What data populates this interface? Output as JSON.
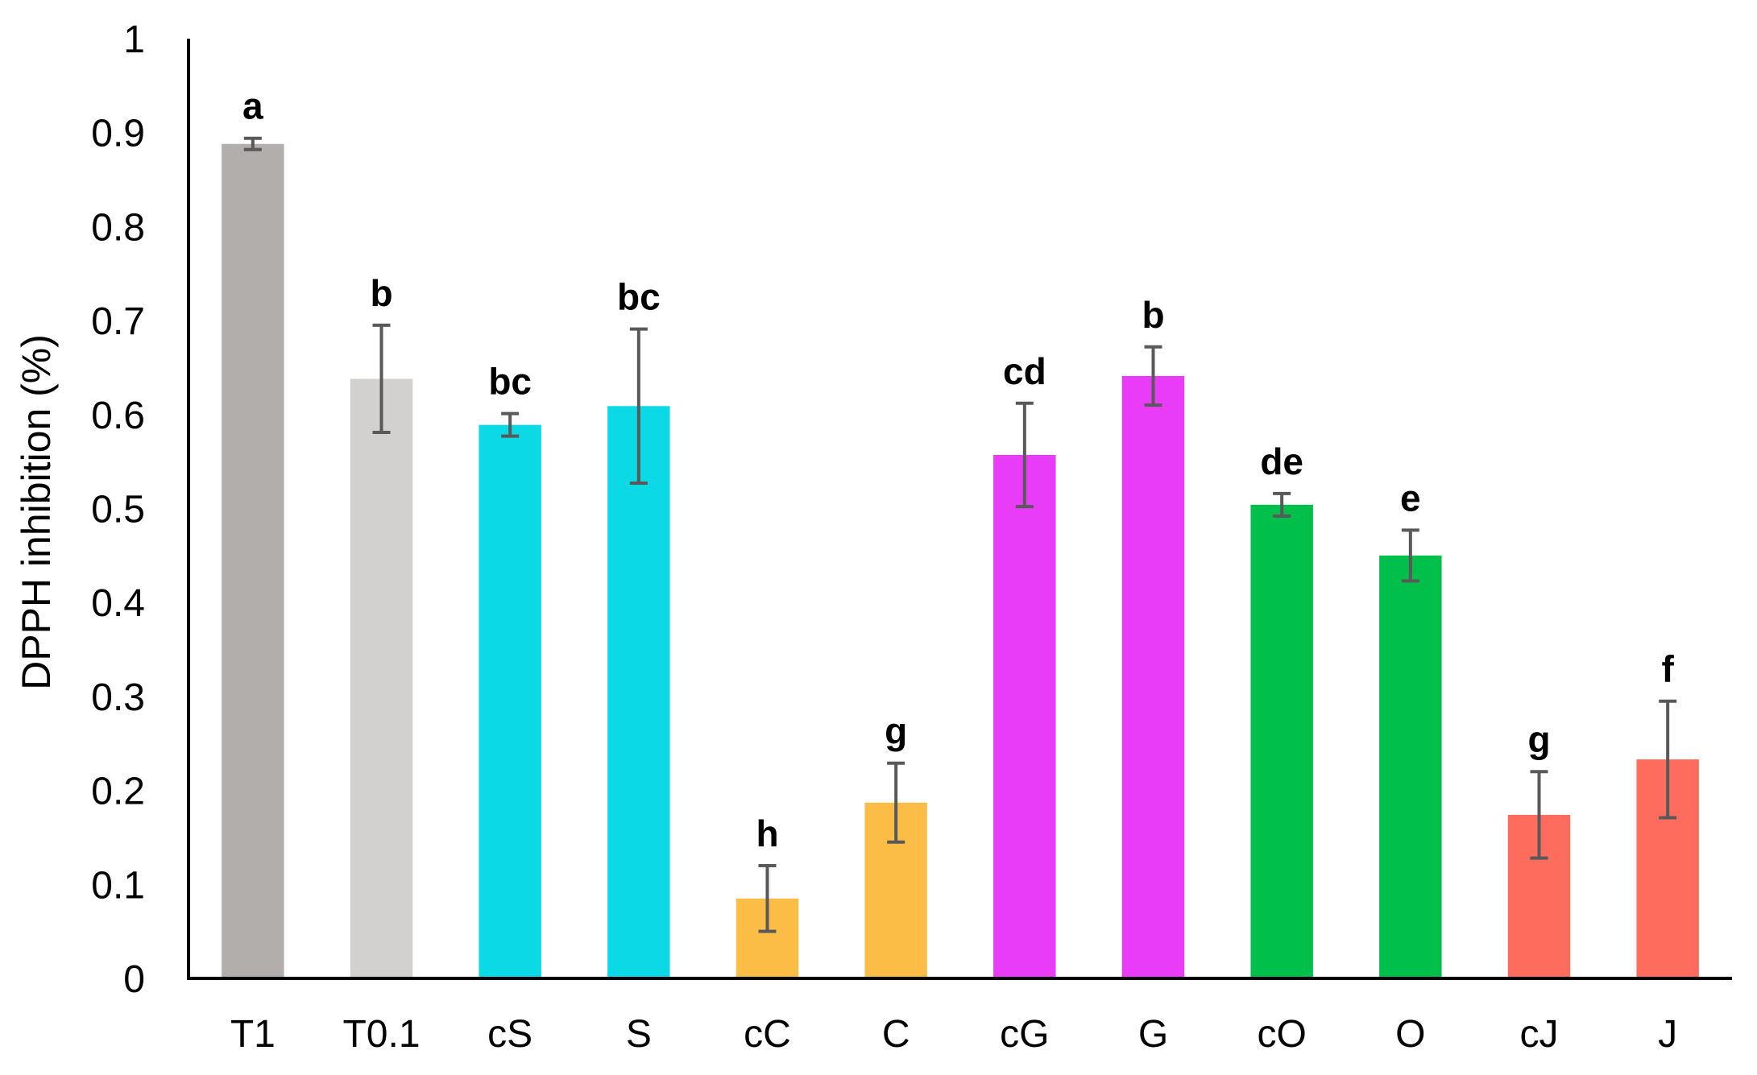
{
  "chart_data": {
    "type": "bar",
    "title": "",
    "xlabel": "",
    "ylabel": "DPPH inhibition (%)",
    "ylim": [
      0,
      1
    ],
    "yticks": [
      "0",
      "0.1",
      "0.2",
      "0.3",
      "0.4",
      "0.5",
      "0.6",
      "0.7",
      "0.8",
      "0.9",
      "1"
    ],
    "yticks_values": [
      0,
      0.1,
      0.2,
      0.3,
      0.4,
      0.5,
      0.6,
      0.7,
      0.8,
      0.9,
      1
    ],
    "grid": false,
    "legend": "none",
    "categories": [
      "T1",
      "T0.1",
      "cS",
      "S",
      "cC",
      "C",
      "cG",
      "G",
      "cO",
      "O",
      "cJ",
      "J"
    ],
    "values": [
      0.888,
      0.638,
      0.589,
      0.609,
      0.085,
      0.187,
      0.557,
      0.641,
      0.504,
      0.45,
      0.174,
      0.233
    ],
    "error": [
      0.006,
      0.057,
      0.012,
      0.082,
      0.035,
      0.042,
      0.055,
      0.031,
      0.012,
      0.027,
      0.046,
      0.062
    ],
    "significance_labels": [
      "a",
      "b",
      "bc",
      "bc",
      "h",
      "g",
      "cd",
      "b",
      "de",
      "e",
      "g",
      "f"
    ],
    "colors": [
      "#b1aeac",
      "#d2d1cf",
      "#0cd9e6",
      "#0cd9e6",
      "#fcbd47",
      "#fcbd47",
      "#e93cf9",
      "#e93cf9",
      "#00bf4b",
      "#00bf4b",
      "#fe6c5e",
      "#fe6c5e"
    ],
    "error_bar_color": "#595959",
    "axis_color": "#000000"
  }
}
